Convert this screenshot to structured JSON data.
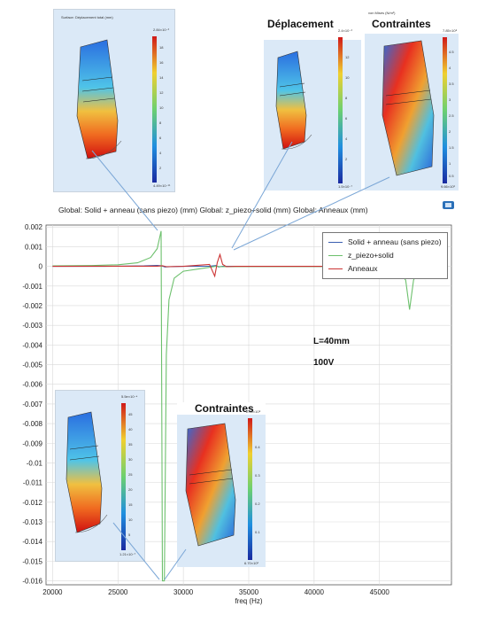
{
  "plot_title": "Global: Solid + anneau (sans piezo) (mm)  Global: z_piezo+solid (mm)  Global: Anneaux (mm)",
  "annotations": {
    "length": "L=40mm",
    "voltage": "100V"
  },
  "insets": {
    "top_left": {
      "title": "Surface: Déplacement total (mm)",
      "cbar_max": "2.84×10⁻³",
      "cbar_min": "4.49×10⁻¹¹",
      "ticks": [
        "18",
        "16",
        "14",
        "12",
        "10",
        "8",
        "6",
        "4",
        "2"
      ]
    },
    "top_middle": {
      "label": "Déplacement",
      "cbar_max": "2.4×10⁻³",
      "cbar_min": "1.5×10⁻⁷",
      "ticks": [
        "12",
        "10",
        "8",
        "6",
        "4",
        "2"
      ]
    },
    "top_right": {
      "label": "Contraintes",
      "title": "von Mises (N/m²)",
      "cbar_max": "7.85×10⁸",
      "cbar_min": "9.66×10²",
      "ticks": [
        "4.5",
        "4",
        "3.5",
        "3",
        "2.5",
        "2",
        "1.5",
        "1",
        "0.5"
      ]
    },
    "bottom_left": {
      "cbar_max": "5.5e×10⁻⁴",
      "cbar_min": "1.21×10⁻⁷",
      "ticks": [
        "45",
        "40",
        "35",
        "30",
        "25",
        "20",
        "15",
        "10",
        "5"
      ]
    },
    "bottom_right": {
      "label": "Contraintes",
      "cbar_max": "2.00×10⁸",
      "cbar_min": "6.70×10²",
      "ticks": [
        "0.4",
        "0.3",
        "0.2",
        "0.1"
      ]
    }
  },
  "chart_data": {
    "type": "line",
    "title": "Global: Solid + anneau (sans piezo) (mm)  Global: z_piezo+solid (mm)  Global: Anneaux (mm)",
    "xlabel": "freq (Hz)",
    "ylabel": "",
    "xlim": [
      19500,
      50500
    ],
    "ylim": [
      -0.0162,
      0.0021
    ],
    "x_ticks": [
      20000,
      25000,
      30000,
      35000,
      40000,
      45000
    ],
    "x_tick_labels": [
      "20000",
      "25000",
      "30000",
      "35000",
      "40000",
      "45000"
    ],
    "y_ticks": [
      0.002,
      0.001,
      0,
      -0.001,
      -0.002,
      -0.003,
      -0.004,
      -0.005,
      -0.006,
      -0.007,
      -0.008,
      -0.009,
      -0.01,
      -0.011,
      -0.012,
      -0.013,
      -0.014,
      -0.015,
      -0.016
    ],
    "y_tick_labels": [
      "0.002",
      "0.001",
      "0",
      "-0.001",
      "-0.002",
      "-0.003",
      "-0.004",
      "-0.005",
      "-0.006",
      "-0.007",
      "-0.008",
      "-0.009",
      "-0.01",
      "-0.011",
      "-0.012",
      "-0.013",
      "-0.014",
      "-0.015",
      "-0.016"
    ],
    "grid": true,
    "legend_position": "top-right",
    "series": [
      {
        "name": "Solid + anneau (sans piezo)",
        "color": "#3a5fb0",
        "x": [
          20000,
          24000,
          27000,
          28000,
          28300,
          28600,
          29000,
          30000,
          32000,
          32500,
          32700,
          33000,
          34000,
          40000,
          47000,
          50000
        ],
        "y": [
          0,
          0,
          2e-05,
          5e-05,
          3e-05,
          -3e-05,
          -2e-05,
          0,
          1e-05,
          4e-05,
          -3e-05,
          0,
          0,
          0,
          -1e-05,
          0
        ]
      },
      {
        "name": "z_piezo+solid",
        "color": "#6cc06c",
        "x": [
          20000,
          23000,
          25000,
          26500,
          27500,
          28000,
          28300,
          28400,
          28550,
          28700,
          28900,
          29300,
          30000,
          32000,
          32500,
          32700,
          33000,
          35000,
          40000,
          45000,
          46500,
          47000,
          47300,
          47600,
          48000,
          50000
        ],
        "y": [
          2e-05,
          4e-05,
          8e-05,
          0.00018,
          0.00045,
          0.0009,
          0.0018,
          -0.016,
          -0.016,
          -0.0045,
          -0.0017,
          -0.0006,
          -0.00025,
          -5e-05,
          1e-05,
          -1e-05,
          -2e-05,
          -1e-05,
          -1e-05,
          -2e-05,
          -0.0003,
          -0.0007,
          -0.0022,
          -0.0007,
          -0.0001,
          0
        ]
      },
      {
        "name": "Anneaux",
        "color": "#cc3333",
        "x": [
          20000,
          28000,
          28400,
          28700,
          30000,
          32000,
          32400,
          32600,
          32800,
          33000,
          33300,
          34000,
          40000,
          50000
        ],
        "y": [
          0,
          1e-05,
          3e-05,
          -2e-05,
          0,
          0.0001,
          -0.0005,
          0.0002,
          0.0006,
          0.0001,
          -2e-05,
          0,
          0,
          0
        ]
      }
    ]
  }
}
